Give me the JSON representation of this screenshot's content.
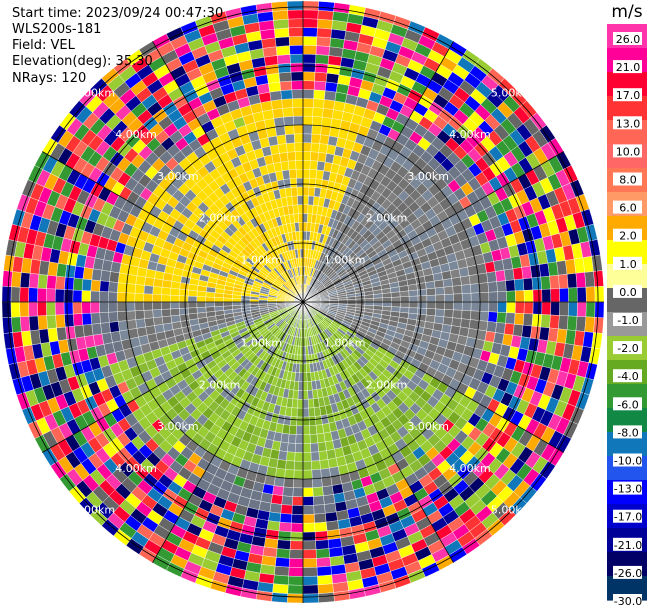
{
  "info": {
    "start_time": "Start time: 2023/09/24 00:47:30",
    "instrument": "WLS200s-181",
    "field": "Field: VEL",
    "elevation": "Elevation(deg): 35.30",
    "nrays": "NRays: 120"
  },
  "chart_data": {
    "type": "ppi",
    "field": "VEL",
    "units": "m/s",
    "nrays": 120,
    "elevation_deg": 35.3,
    "range_rings": [
      {
        "label": "1.00km",
        "value": 1.0
      },
      {
        "label": "2.00km",
        "value": 2.0
      },
      {
        "label": "3.00km",
        "value": 3.0
      },
      {
        "label": "4.00km",
        "value": 4.0
      },
      {
        "label": "5.00km",
        "value": 5.0
      }
    ],
    "max_range_km": 5.1,
    "spoke_step_deg": 30,
    "colorbar": {
      "title": "m/s",
      "ticks": [
        "26.0",
        "21.0",
        "17.0",
        "13.0",
        "10.0",
        "8.0",
        "6.0",
        "2.0",
        "1.0",
        "0.0",
        "-1.0",
        "-2.0",
        "-4.0",
        "-6.0",
        "-8.0",
        "-10.0",
        "-13.0",
        "-17.0",
        "-21.0",
        "-26.0",
        "-30.0"
      ],
      "colors": [
        "#ff33aa",
        "#ff0099",
        "#ff0033",
        "#ff3333",
        "#ff6655",
        "#ff6666",
        "#ff7755",
        "#ff9966",
        "#ffaa00",
        "#ffff00",
        "#ffff99",
        "#666666",
        "#999999",
        "#99cc33",
        "#66aa22",
        "#339933",
        "#118844",
        "#1177bb",
        "#2255ee",
        "#0000ff",
        "#0000cc",
        "#000099",
        "#000066",
        "#003366"
      ]
    },
    "velocity_regions": [
      {
        "azimuth_from_deg": 270,
        "azimuth_to_deg": 20,
        "range_to_km": 3.6,
        "velocity_mps": 1.5
      },
      {
        "azimuth_from_deg": 120,
        "azimuth_to_deg": 250,
        "range_to_km": 3.6,
        "velocity_mps": -1.5
      }
    ]
  }
}
